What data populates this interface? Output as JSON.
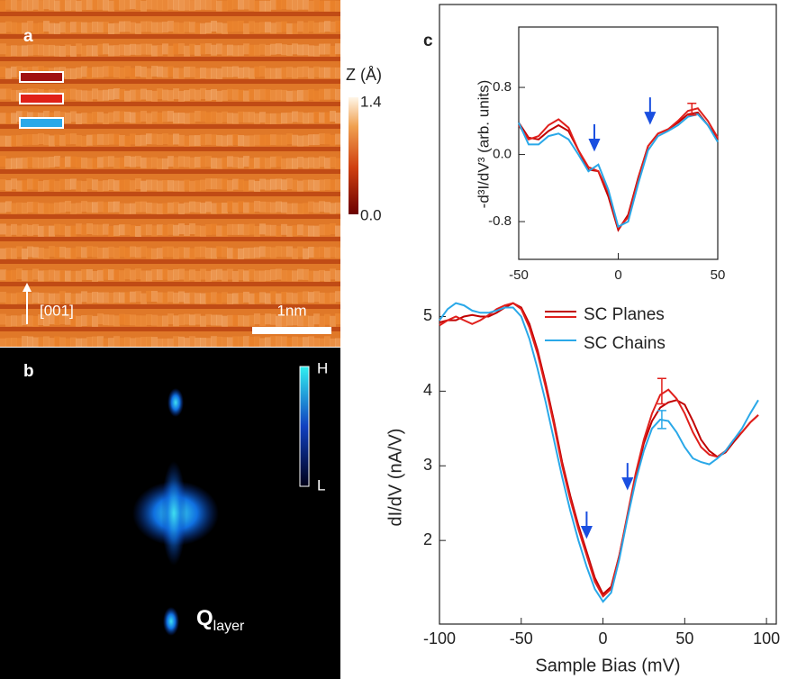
{
  "panels": {
    "a": {
      "label": "a",
      "colorbar_label": "Z (Å)",
      "colorbar_ticks": [
        "1.4",
        "0.0"
      ],
      "direction": "[001]",
      "scale_bar": "1nm"
    },
    "b": {
      "label": "b",
      "colorbar_ticks": [
        "H",
        "L"
      ],
      "q_label": "Q",
      "q_subscript": "layer"
    }
  },
  "chart_data": [
    {
      "type": "line",
      "panel_label": "c",
      "xlabel": "Sample Bias (mV)",
      "ylabel": "dI/dV (nA/V)",
      "x": [
        -100,
        -95,
        -90,
        -85,
        -80,
        -75,
        -70,
        -65,
        -60,
        -55,
        -50,
        -45,
        -40,
        -35,
        -30,
        -25,
        -20,
        -15,
        -10,
        -5,
        0,
        5,
        10,
        15,
        20,
        25,
        30,
        35,
        40,
        45,
        50,
        55,
        60,
        65,
        70,
        75,
        80,
        85,
        90,
        95
      ],
      "series": [
        {
          "name": "SC Planes",
          "color": "#c00000",
          "values": [
            4.92,
            4.95,
            4.95,
            5.0,
            5.02,
            5.0,
            5.0,
            5.05,
            5.12,
            5.18,
            5.12,
            4.9,
            4.55,
            4.1,
            3.6,
            3.05,
            2.6,
            2.2,
            1.85,
            1.5,
            1.28,
            1.38,
            1.8,
            2.32,
            2.85,
            3.3,
            3.6,
            3.78,
            3.85,
            3.88,
            3.82,
            3.6,
            3.35,
            3.2,
            3.12,
            3.18,
            3.32,
            3.45,
            3.58,
            3.68
          ]
        },
        {
          "color": "#e0201c",
          "values": [
            4.88,
            4.95,
            5.0,
            4.95,
            4.9,
            4.95,
            5.02,
            5.1,
            5.15,
            5.18,
            5.1,
            4.85,
            4.5,
            4.05,
            3.55,
            3.0,
            2.55,
            2.15,
            1.8,
            1.45,
            1.25,
            1.35,
            1.8,
            2.35,
            2.9,
            3.35,
            3.7,
            3.95,
            4.02,
            3.9,
            3.7,
            3.45,
            3.25,
            3.15,
            3.12,
            3.2,
            3.35,
            3.45,
            3.58,
            3.68
          ]
        },
        {
          "name": "SC Chains",
          "color": "#2aa8e8",
          "values": [
            4.95,
            5.1,
            5.18,
            5.15,
            5.08,
            5.05,
            5.05,
            5.08,
            5.12,
            5.12,
            5.0,
            4.7,
            4.3,
            3.85,
            3.35,
            2.85,
            2.4,
            2.0,
            1.65,
            1.35,
            1.18,
            1.3,
            1.75,
            2.3,
            2.8,
            3.2,
            3.5,
            3.62,
            3.6,
            3.45,
            3.25,
            3.1,
            3.05,
            3.02,
            3.1,
            3.2,
            3.35,
            3.5,
            3.7,
            3.88
          ]
        }
      ],
      "error_bars": [
        {
          "x": 36,
          "y": 4.0,
          "err": 0.17,
          "color": "#e0201c"
        },
        {
          "x": 36,
          "y": 3.62,
          "err": 0.12,
          "color": "#2aa8e8"
        }
      ],
      "arrows": [
        {
          "x": -10,
          "y": 2.05
        },
        {
          "x": 15,
          "y": 2.7
        }
      ],
      "arrow_color": "#1a4fe0",
      "xlim": [
        -100,
        106
      ],
      "ylim": [
        0.88,
        9.18
      ],
      "xticks": [
        -100,
        -50,
        0,
        50,
        100
      ],
      "yticks": [
        2,
        3,
        4,
        5
      ]
    },
    {
      "type": "line",
      "ylabel": "-d³I/dV³ (arb. units)",
      "x": [
        -50,
        -45,
        -40,
        -35,
        -30,
        -25,
        -20,
        -15,
        -10,
        -5,
        0,
        5,
        10,
        15,
        20,
        25,
        30,
        35,
        40,
        45,
        50
      ],
      "series": [
        {
          "color": "#c00000",
          "values": [
            0.38,
            0.2,
            0.18,
            0.28,
            0.35,
            0.28,
            0.05,
            -0.18,
            -0.2,
            -0.5,
            -0.9,
            -0.72,
            -0.28,
            0.1,
            0.25,
            0.3,
            0.38,
            0.48,
            0.5,
            0.35,
            0.18
          ]
        },
        {
          "color": "#e0201c",
          "values": [
            0.35,
            0.18,
            0.22,
            0.35,
            0.42,
            0.32,
            0.05,
            -0.15,
            -0.2,
            -0.45,
            -0.88,
            -0.75,
            -0.3,
            0.1,
            0.25,
            0.3,
            0.4,
            0.52,
            0.55,
            0.4,
            0.2
          ]
        },
        {
          "color": "#2aa8e8",
          "values": [
            0.38,
            0.12,
            0.12,
            0.22,
            0.25,
            0.18,
            0.0,
            -0.2,
            -0.12,
            -0.42,
            -0.86,
            -0.8,
            -0.35,
            0.05,
            0.22,
            0.28,
            0.35,
            0.45,
            0.48,
            0.35,
            0.15
          ]
        }
      ],
      "error_bars": [
        {
          "x": 37,
          "y": 0.54,
          "err": 0.07,
          "color": "#e0201c"
        }
      ],
      "arrows": [
        {
          "x": -12,
          "y": 0.06
        },
        {
          "x": 16,
          "y": 0.38
        }
      ],
      "arrow_color": "#1a4fe0",
      "xlim": [
        -50,
        50
      ],
      "ylim": [
        -1.25,
        1.52
      ],
      "xticks": [
        -50,
        0,
        50
      ],
      "yticks": [
        -0.8,
        {
          "value": 0,
          "label": "0.0"
        },
        0.8
      ]
    }
  ]
}
